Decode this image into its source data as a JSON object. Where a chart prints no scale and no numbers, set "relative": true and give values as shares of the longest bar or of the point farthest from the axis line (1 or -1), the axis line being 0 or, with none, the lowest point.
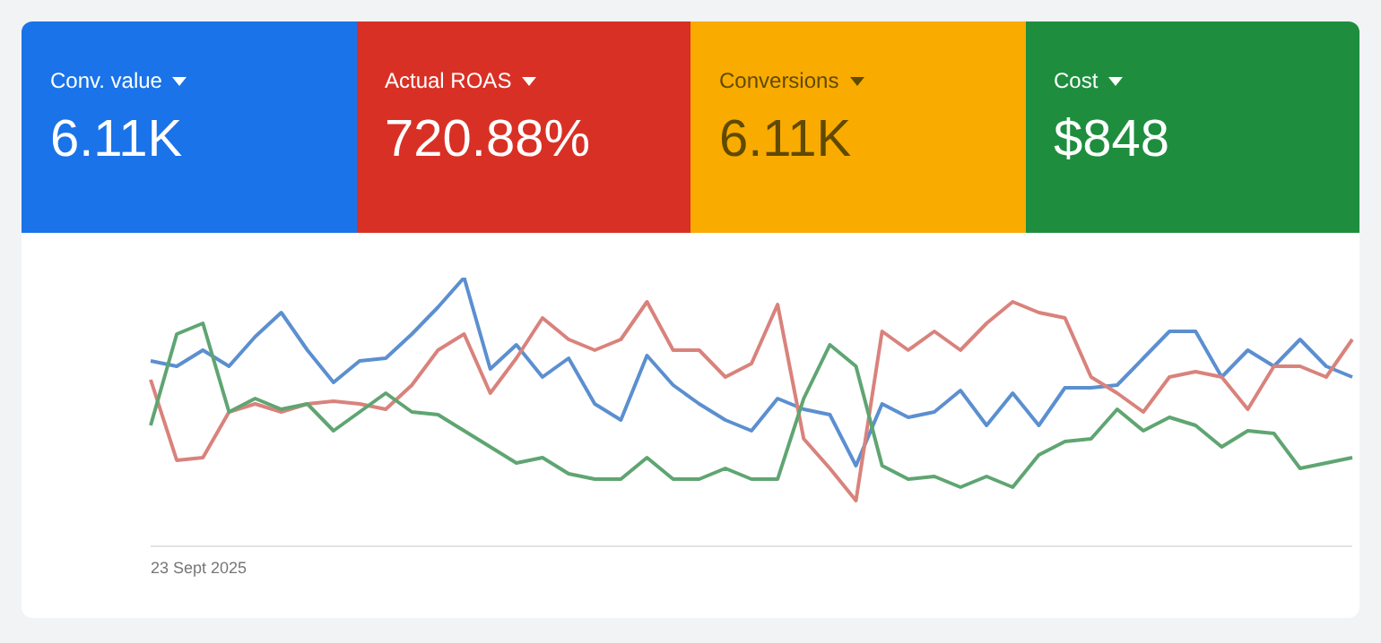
{
  "chart_data": [
    {
      "type": "other",
      "annotations": [
        "Conv. value",
        "6.11K",
        "Actual ROAS",
        "720.88%",
        "Conversions",
        "6.11K",
        "Cost",
        "$848"
      ],
      "colors": [
        "#1a73e8",
        "#d93025",
        "#f9ab00",
        "#1e8e3e"
      ]
    },
    {
      "type": "line",
      "relative": true,
      "marker": "none",
      "annotations": [
        "23 Sept 2025"
      ],
      "categories": [
        null,
        null,
        null,
        null,
        null,
        null,
        null,
        null,
        null,
        null,
        null,
        null,
        null,
        null,
        null,
        null,
        null,
        null,
        null,
        null,
        null,
        null,
        null,
        null,
        null,
        null,
        null,
        null,
        null,
        null,
        null,
        null,
        null,
        null,
        null,
        null,
        null,
        null,
        null,
        null,
        null,
        null,
        null,
        null,
        null,
        null,
        null
      ],
      "series": [
        {
          "color": "#5b8fd0",
          "values": [
            0.69,
            0.67,
            0.73,
            0.67,
            0.78,
            0.87,
            0.73,
            0.61,
            0.69,
            0.7,
            0.79,
            0.89,
            1.0,
            0.66,
            0.75,
            0.63,
            0.7,
            0.53,
            0.47,
            0.71,
            0.6,
            0.53,
            0.47,
            0.43,
            0.55,
            0.51,
            0.49,
            0.3,
            0.53,
            0.48,
            0.5,
            0.58,
            0.45,
            0.57,
            0.45,
            0.59,
            0.59,
            0.6,
            0.7,
            0.8,
            0.8,
            0.63,
            0.73,
            0.67,
            0.77,
            0.67,
            0.63
          ]
        },
        {
          "color": "#d9827c",
          "values": [
            0.62,
            0.32,
            0.33,
            0.5,
            0.53,
            0.5,
            0.53,
            0.54,
            0.53,
            0.51,
            0.6,
            0.73,
            0.79,
            0.57,
            0.7,
            0.85,
            0.77,
            0.73,
            0.77,
            0.91,
            0.73,
            0.73,
            0.63,
            0.68,
            0.9,
            0.4,
            0.29,
            0.17,
            0.8,
            0.73,
            0.8,
            0.73,
            0.83,
            0.91,
            0.87,
            0.85,
            0.63,
            0.57,
            0.5,
            0.63,
            0.65,
            0.63,
            0.51,
            0.67,
            0.67,
            0.63,
            0.77
          ]
        },
        {
          "color": "#5fa572",
          "values": [
            0.45,
            0.79,
            0.83,
            0.5,
            0.55,
            0.51,
            0.53,
            0.43,
            0.5,
            0.57,
            0.5,
            0.49,
            0.43,
            0.37,
            0.31,
            0.33,
            0.27,
            0.25,
            0.25,
            0.33,
            0.25,
            0.25,
            0.29,
            0.25,
            0.25,
            0.55,
            0.75,
            0.67,
            0.3,
            0.25,
            0.26,
            0.22,
            0.26,
            0.22,
            0.34,
            0.39,
            0.4,
            0.51,
            0.43,
            0.48,
            0.45,
            0.37,
            0.43,
            0.42,
            0.29,
            0.31,
            0.33
          ]
        }
      ]
    }
  ]
}
